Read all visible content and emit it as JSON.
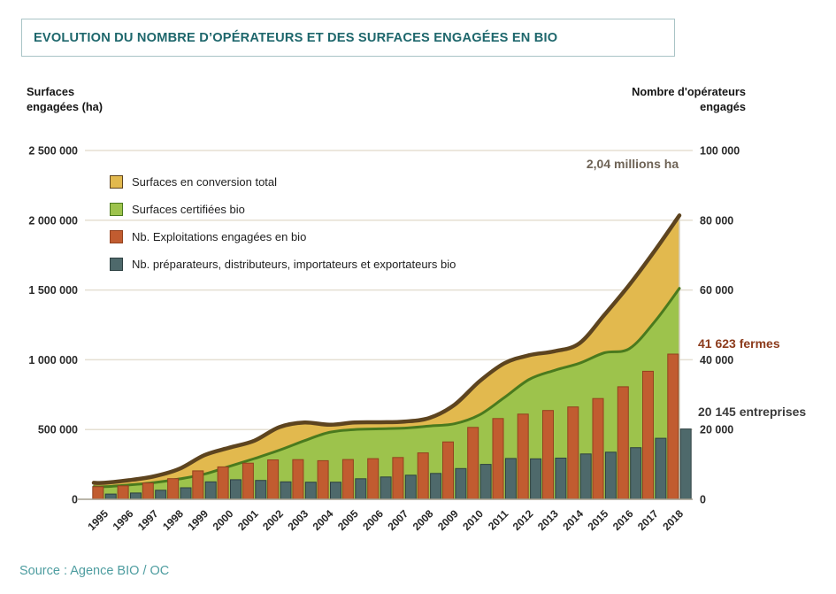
{
  "header": {
    "title": "EVOLUTION DU NOMBRE D’OPÉRATEURS ET DES SURFACES ENGAGÉES EN BIO"
  },
  "axes": {
    "left_title": [
      "Surfaces",
      "engagées (ha)"
    ],
    "right_title": [
      "Nombre d'opérateurs",
      "engagés"
    ]
  },
  "footer": {
    "source": "Source : Agence BIO / OC"
  },
  "colors": {
    "title_text": "#1e676c",
    "source_text": "#4e9da0",
    "gridline": "#e5dfd2",
    "axis_line": "#a49d8e",
    "plot_right_edge": "#d5cfc1"
  },
  "chart_data": {
    "type": "combo (stacked area, left axis + grouped bars, right axis)",
    "title": "EVOLUTION DU NOMBRE D’OPÉRATEURS ET DES SURFACES ENGAGÉES EN BIO",
    "x": [
      1995,
      1996,
      1997,
      1998,
      1999,
      2000,
      2001,
      2002,
      2003,
      2004,
      2005,
      2006,
      2007,
      2008,
      2009,
      2010,
      2011,
      2012,
      2013,
      2014,
      2015,
      2016,
      2017,
      2018
    ],
    "left_axis": {
      "label": "Surfaces engagées (ha)",
      "max": 2500000,
      "tick_values": [
        0,
        500000,
        1000000,
        1500000,
        2000000,
        2500000
      ],
      "tick_labels": [
        "0",
        "500 000",
        "1 000 000",
        "1 500 000",
        "2 000 000",
        "2 500 000"
      ]
    },
    "right_axis": {
      "label": "Nombre d'opérateurs engagés",
      "max": 100000,
      "tick_values": [
        0,
        20000,
        40000,
        60000,
        80000,
        100000
      ],
      "tick_labels": [
        "0",
        "20 000",
        "40 000",
        "60 000",
        "80 000",
        "100 000"
      ]
    },
    "grid": true,
    "legend_position": "top-left-inside",
    "series": [
      {
        "name": "Surfaces en conversion total",
        "type": "area-stacked-top",
        "axis": "left",
        "color": "#e2b94e",
        "border": "#5d441f",
        "values": [
          28000,
          34000,
          45000,
          72000,
          136000,
          134000,
          128000,
          165000,
          130000,
          54000,
          50000,
          47000,
          47000,
          58000,
          136000,
          240000,
          245000,
          173000,
          137000,
          143000,
          272000,
          458000,
          508000,
          523000
        ]
      },
      {
        "name": "Surfaces certifiées bio",
        "type": "area-stacked-base",
        "axis": "left",
        "color": "#9dc34c",
        "border": "#4a7a1e",
        "values": [
          90000,
          103000,
          120000,
          146000,
          180000,
          236000,
          292000,
          352000,
          420000,
          480000,
          500000,
          505000,
          510000,
          525000,
          541000,
          605000,
          730000,
          860000,
          924000,
          975000,
          1050000,
          1080000,
          1270000,
          1512000
        ]
      },
      {
        "name": "Nb. Exploitations engagées en bio",
        "type": "bar",
        "axis": "right",
        "color": "#c15c30",
        "border": "#93411e",
        "values": [
          3602,
          3854,
          4680,
          5914,
          8140,
          9283,
          10364,
          11288,
          11377,
          11059,
          11402,
          11640,
          11978,
          13298,
          16446,
          20604,
          23135,
          24425,
          25467,
          26466,
          28884,
          32264,
          36691,
          41623
        ]
      },
      {
        "name": "Nb. préparateurs, distributeurs, importateurs et exportateurs bio",
        "type": "bar",
        "axis": "right",
        "color": "#4e696b",
        "border": "#2d4041",
        "values": [
          1500,
          1800,
          2600,
          3300,
          5000,
          5600,
          5400,
          5000,
          4900,
          4900,
          5900,
          6400,
          6900,
          7400,
          8800,
          10000,
          11700,
          11600,
          11800,
          13000,
          13500,
          14800,
          17500,
          20145
        ]
      }
    ],
    "annotations": [
      {
        "text": "2,04 millions ha",
        "color": "#6e6356",
        "refers_to": "total engaged surface 2018"
      },
      {
        "text": "41 623 fermes",
        "color": "#8c3b1c",
        "refers_to": "farms 2018"
      },
      {
        "text": "20 145 entreprises",
        "color": "#3a3a3a",
        "refers_to": "processors/distributors/importers/exporters 2018"
      }
    ]
  }
}
